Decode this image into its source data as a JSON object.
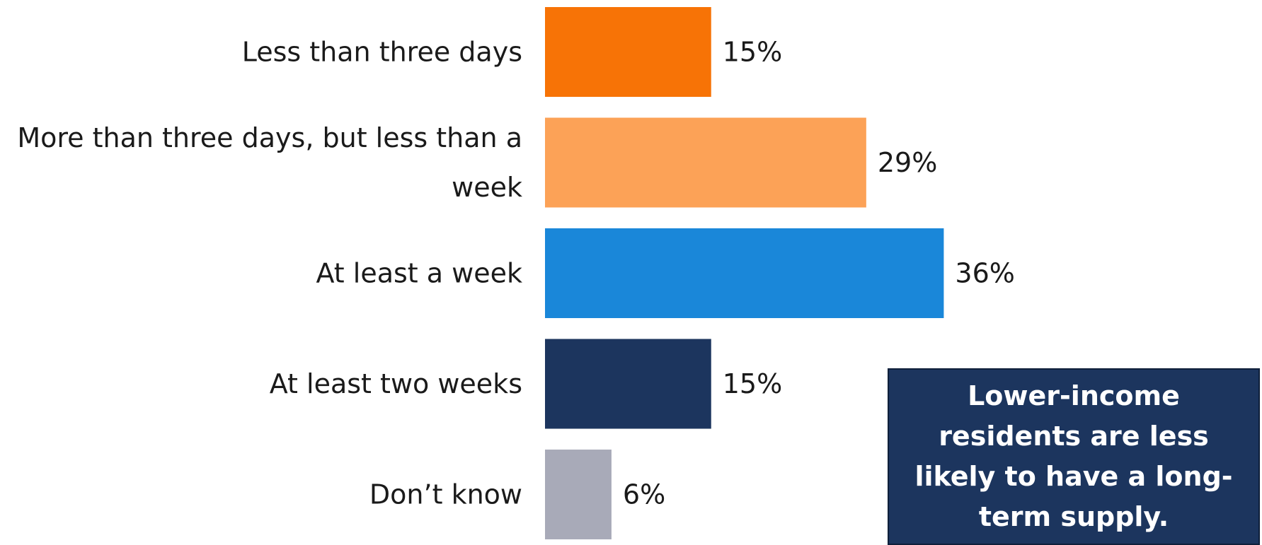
{
  "chart_data": {
    "type": "bar",
    "orientation": "horizontal",
    "categories": [
      [
        "Less than three days"
      ],
      [
        "More than three days, but less than a",
        "week"
      ],
      [
        "At least a week"
      ],
      [
        "At least two weeks"
      ],
      [
        "Don’t know"
      ]
    ],
    "values": [
      15,
      29,
      36,
      15,
      6
    ],
    "value_labels": [
      "15%",
      "29%",
      "36%",
      "15%",
      "6%"
    ],
    "colors": [
      "#f77306",
      "#fca257",
      "#1a87d9",
      "#1c355e",
      "#a8aab8"
    ],
    "unit": "%",
    "title": "",
    "xlabel": "",
    "ylabel": "",
    "grid": false,
    "legend": "none"
  },
  "callout": {
    "text": "Lower-income residents are less likely to have a long-term supply.",
    "background": "#1c355e"
  }
}
